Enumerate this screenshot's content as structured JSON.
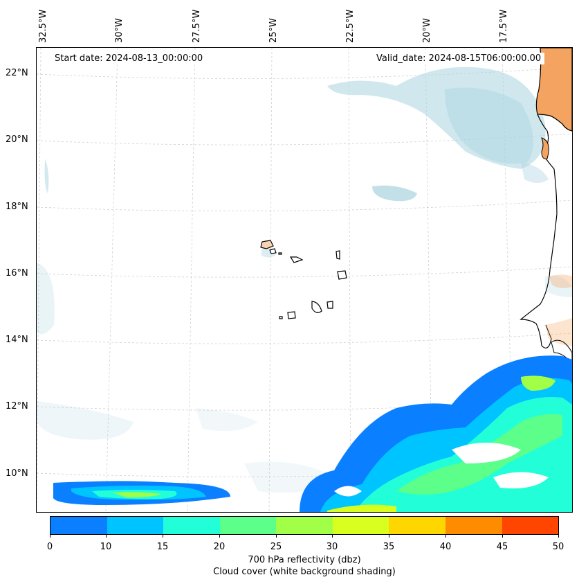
{
  "lon_labels": [
    "32.5°W",
    "30°W",
    "27.5°W",
    "25°W",
    "22.5°W",
    "20°W",
    "17.5°W"
  ],
  "lat_labels": [
    "22°N",
    "20°N",
    "18°N",
    "16°N",
    "14°N",
    "12°N",
    "10°N"
  ],
  "start_date": "Start date: 2024-08-13_00:00:00",
  "valid_date": "Valid_date: 2024-08-15T06:00:00.00",
  "colorbar": {
    "ticks": [
      "0",
      "10",
      "15",
      "20",
      "25",
      "30",
      "35",
      "40",
      "45",
      "50"
    ],
    "colors": [
      "#0a7fff",
      "#00c4ff",
      "#22ffd8",
      "#5cff8a",
      "#a0ff46",
      "#d8ff1e",
      "#ffd700",
      "#ff8c00",
      "#ff4500"
    ],
    "label_line1": "700 hPa reflectivity (dbz)",
    "label_line2": "Cloud cover (white background shading)"
  },
  "colors": {
    "land": "#f4a460",
    "cloud": "#a9d3e0",
    "coast": "#000000",
    "grid": "#cccccc"
  }
}
